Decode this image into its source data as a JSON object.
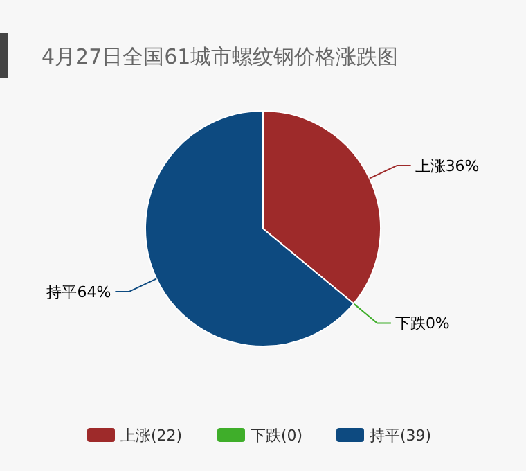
{
  "chart_data": {
    "type": "pie",
    "title": "4月27日全国61城市螺纹钢价格涨跌图",
    "categories": [
      "上涨(22)",
      "下跌(0)",
      "持平(39)"
    ],
    "values": [
      36,
      0,
      64
    ],
    "value_labels": [
      "上涨36%",
      "下跌0%",
      "持平64%"
    ],
    "colors": [
      "#9e2a2a",
      "#3fae2a",
      "#0d4a80"
    ],
    "legend": "bottom"
  }
}
